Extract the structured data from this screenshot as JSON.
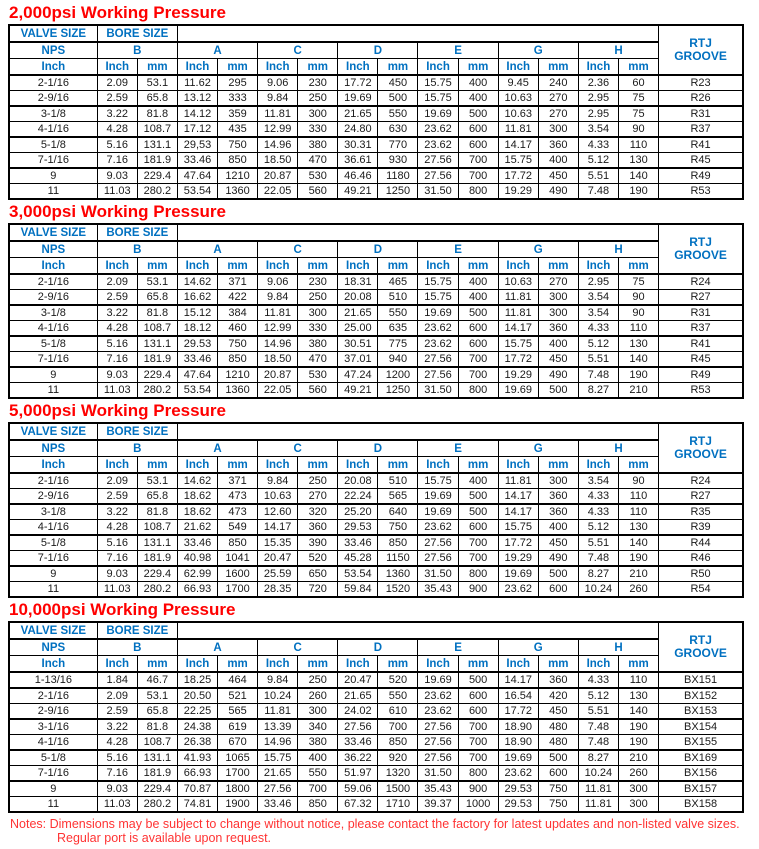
{
  "header": {
    "valve_size": "VALVE SIZE",
    "bore_size": "BORE SIZE",
    "nps": "NPS",
    "inch": "Inch",
    "mm": "mm",
    "rtj_line1": "RTJ",
    "rtj_line2": "GROOVE",
    "groups": [
      "B",
      "A",
      "C",
      "D",
      "E",
      "G",
      "H"
    ]
  },
  "colors": {
    "title_red": "#ff0000",
    "header_blue": "#0070c0",
    "border_black": "#000000",
    "notes_red": "#ff3333"
  },
  "tables": [
    {
      "title": "2,000psi Working Pressure",
      "rows": [
        [
          "2-1/16",
          "2.09",
          "53.1",
          "11.62",
          "295",
          "9.06",
          "230",
          "17.72",
          "450",
          "15.75",
          "400",
          "9.45",
          "240",
          "2.36",
          "60",
          "R23"
        ],
        [
          "2-9/16",
          "2.59",
          "65.8",
          "13.12",
          "333",
          "9.84",
          "250",
          "19.69",
          "500",
          "15.75",
          "400",
          "10.63",
          "270",
          "2.95",
          "75",
          "R26"
        ],
        [
          "3-1/8",
          "3.22",
          "81.8",
          "14.12",
          "359",
          "11.81",
          "300",
          "21.65",
          "550",
          "19.69",
          "500",
          "10.63",
          "270",
          "2.95",
          "75",
          "R31"
        ],
        [
          "4-1/16",
          "4.28",
          "108.7",
          "17.12",
          "435",
          "12.99",
          "330",
          "24.80",
          "630",
          "23.62",
          "600",
          "11.81",
          "300",
          "3.54",
          "90",
          "R37"
        ],
        [
          "5-1/8",
          "5.16",
          "131.1",
          "29,53",
          "750",
          "14.96",
          "380",
          "30.31",
          "770",
          "23.62",
          "600",
          "14.17",
          "360",
          "4.33",
          "110",
          "R41"
        ],
        [
          "7-1/16",
          "7.16",
          "181.9",
          "33.46",
          "850",
          "18.50",
          "470",
          "36.61",
          "930",
          "27.56",
          "700",
          "15.75",
          "400",
          "5.12",
          "130",
          "R45"
        ],
        [
          "9",
          "9.03",
          "229.4",
          "47.64",
          "1210",
          "20.87",
          "530",
          "46.46",
          "1180",
          "27.56",
          "700",
          "17.72",
          "450",
          "5.51",
          "140",
          "R49"
        ],
        [
          "11",
          "11.03",
          "280.2",
          "53.54",
          "1360",
          "22.05",
          "560",
          "49.21",
          "1250",
          "31.50",
          "800",
          "19.29",
          "490",
          "7.48",
          "190",
          "R53"
        ]
      ]
    },
    {
      "title": "3,000psi Working Pressure",
      "rows": [
        [
          "2-1/16",
          "2.09",
          "53.1",
          "14.62",
          "371",
          "9.06",
          "230",
          "18.31",
          "465",
          "15.75",
          "400",
          "10.63",
          "270",
          "2.95",
          "75",
          "R24"
        ],
        [
          "2-9/16",
          "2.59",
          "65.8",
          "16.62",
          "422",
          "9.84",
          "250",
          "20.08",
          "510",
          "15.75",
          "400",
          "11.81",
          "300",
          "3.54",
          "90",
          "R27"
        ],
        [
          "3-1/8",
          "3.22",
          "81.8",
          "15.12",
          "384",
          "11.81",
          "300",
          "21.65",
          "550",
          "19.69",
          "500",
          "11.81",
          "300",
          "3.54",
          "90",
          "R31"
        ],
        [
          "4-1/16",
          "4.28",
          "108.7",
          "18.12",
          "460",
          "12.99",
          "330",
          "25.00",
          "635",
          "23.62",
          "600",
          "14.17",
          "360",
          "4.33",
          "110",
          "R37"
        ],
        [
          "5-1/8",
          "5.16",
          "131.1",
          "29.53",
          "750",
          "14.96",
          "380",
          "30.51",
          "775",
          "23.62",
          "600",
          "15.75",
          "400",
          "5.12",
          "130",
          "R41"
        ],
        [
          "7-1/16",
          "7.16",
          "181.9",
          "33.46",
          "850",
          "18.50",
          "470",
          "37.01",
          "940",
          "27.56",
          "700",
          "17.72",
          "450",
          "5.51",
          "140",
          "R45"
        ],
        [
          "9",
          "9.03",
          "229.4",
          "47.64",
          "1210",
          "20.87",
          "530",
          "47.24",
          "1200",
          "27.56",
          "700",
          "19.29",
          "490",
          "7.48",
          "190",
          "R49"
        ],
        [
          "11",
          "11.03",
          "280.2",
          "53.54",
          "1360",
          "22.05",
          "560",
          "49.21",
          "1250",
          "31.50",
          "800",
          "19.69",
          "500",
          "8.27",
          "210",
          "R53"
        ]
      ]
    },
    {
      "title": "5,000psi Working Pressure",
      "rows": [
        [
          "2-1/16",
          "2.09",
          "53.1",
          "14.62",
          "371",
          "9.84",
          "250",
          "20.08",
          "510",
          "15.75",
          "400",
          "11.81",
          "300",
          "3.54",
          "90",
          "R24"
        ],
        [
          "2-9/16",
          "2.59",
          "65.8",
          "18.62",
          "473",
          "10.63",
          "270",
          "22.24",
          "565",
          "19.69",
          "500",
          "14.17",
          "360",
          "4.33",
          "110",
          "R27"
        ],
        [
          "3-1/8",
          "3.22",
          "81.8",
          "18.62",
          "473",
          "12.60",
          "320",
          "25.20",
          "640",
          "19.69",
          "500",
          "14.17",
          "360",
          "4.33",
          "110",
          "R35"
        ],
        [
          "4-1/16",
          "4.28",
          "108.7",
          "21.62",
          "549",
          "14.17",
          "360",
          "29.53",
          "750",
          "23.62",
          "600",
          "15.75",
          "400",
          "5.12",
          "130",
          "R39"
        ],
        [
          "5-1/8",
          "5.16",
          "131.1",
          "33.46",
          "850",
          "15.35",
          "390",
          "33.46",
          "850",
          "27.56",
          "700",
          "17.72",
          "450",
          "5.51",
          "140",
          "R44"
        ],
        [
          "7-1/16",
          "7.16",
          "181.9",
          "40.98",
          "1041",
          "20.47",
          "520",
          "45.28",
          "1150",
          "27.56",
          "700",
          "19.29",
          "490",
          "7.48",
          "190",
          "R46"
        ],
        [
          "9",
          "9.03",
          "229.4",
          "62.99",
          "1600",
          "25.59",
          "650",
          "53.54",
          "1360",
          "31.50",
          "800",
          "19.69",
          "500",
          "8.27",
          "210",
          "R50"
        ],
        [
          "11",
          "11.03",
          "280.2",
          "66.93",
          "1700",
          "28.35",
          "720",
          "59.84",
          "1520",
          "35.43",
          "900",
          "23.62",
          "600",
          "10.24",
          "260",
          "R54"
        ]
      ]
    },
    {
      "title": "10,000psi Working Pressure",
      "rows": [
        [
          "1-13/16",
          "1.84",
          "46.7",
          "18.25",
          "464",
          "9.84",
          "250",
          "20.47",
          "520",
          "19.69",
          "500",
          "14.17",
          "360",
          "4.33",
          "110",
          "BX151"
        ],
        [
          "2-1/16",
          "2.09",
          "53.1",
          "20.50",
          "521",
          "10.24",
          "260",
          "21.65",
          "550",
          "23.62",
          "600",
          "16.54",
          "420",
          "5.12",
          "130",
          "BX152"
        ],
        [
          "2-9/16",
          "2.59",
          "65.8",
          "22.25",
          "565",
          "11.81",
          "300",
          "24.02",
          "610",
          "23.62",
          "600",
          "17.72",
          "450",
          "5.51",
          "140",
          "BX153"
        ],
        [
          "3-1/16",
          "3.22",
          "81.8",
          "24.38",
          "619",
          "13.39",
          "340",
          "27.56",
          "700",
          "27.56",
          "700",
          "18.90",
          "480",
          "7.48",
          "190",
          "BX154"
        ],
        [
          "4-1/16",
          "4.28",
          "108.7",
          "26.38",
          "670",
          "14.96",
          "380",
          "33.46",
          "850",
          "27.56",
          "700",
          "18.90",
          "480",
          "7.48",
          "190",
          "BX155"
        ],
        [
          "5-1/8",
          "5.16",
          "131.1",
          "41.93",
          "1065",
          "15.75",
          "400",
          "36.22",
          "920",
          "27.56",
          "700",
          "19.69",
          "500",
          "8.27",
          "210",
          "BX169"
        ],
        [
          "7-1/16",
          "7.16",
          "181.9",
          "66.93",
          "1700",
          "21.65",
          "550",
          "51.97",
          "1320",
          "31.50",
          "800",
          "23.62",
          "600",
          "10.24",
          "260",
          "BX156"
        ],
        [
          "9",
          "9.03",
          "229.4",
          "70.87",
          "1800",
          "27.56",
          "700",
          "59.06",
          "1500",
          "35.43",
          "900",
          "29.53",
          "750",
          "11.81",
          "300",
          "BX157"
        ],
        [
          "11",
          "11.03",
          "280.2",
          "74.81",
          "1900",
          "33.46",
          "850",
          "67.32",
          "1710",
          "39.37",
          "1000",
          "29.53",
          "750",
          "11.81",
          "300",
          "BX158"
        ]
      ]
    }
  ],
  "notes": {
    "label": "Notes:",
    "line1": "Dimensions may be subject to change without notice, please contact the factory for latest updates and non-listed valve sizes.",
    "line2": "Regular port is available upon request."
  }
}
